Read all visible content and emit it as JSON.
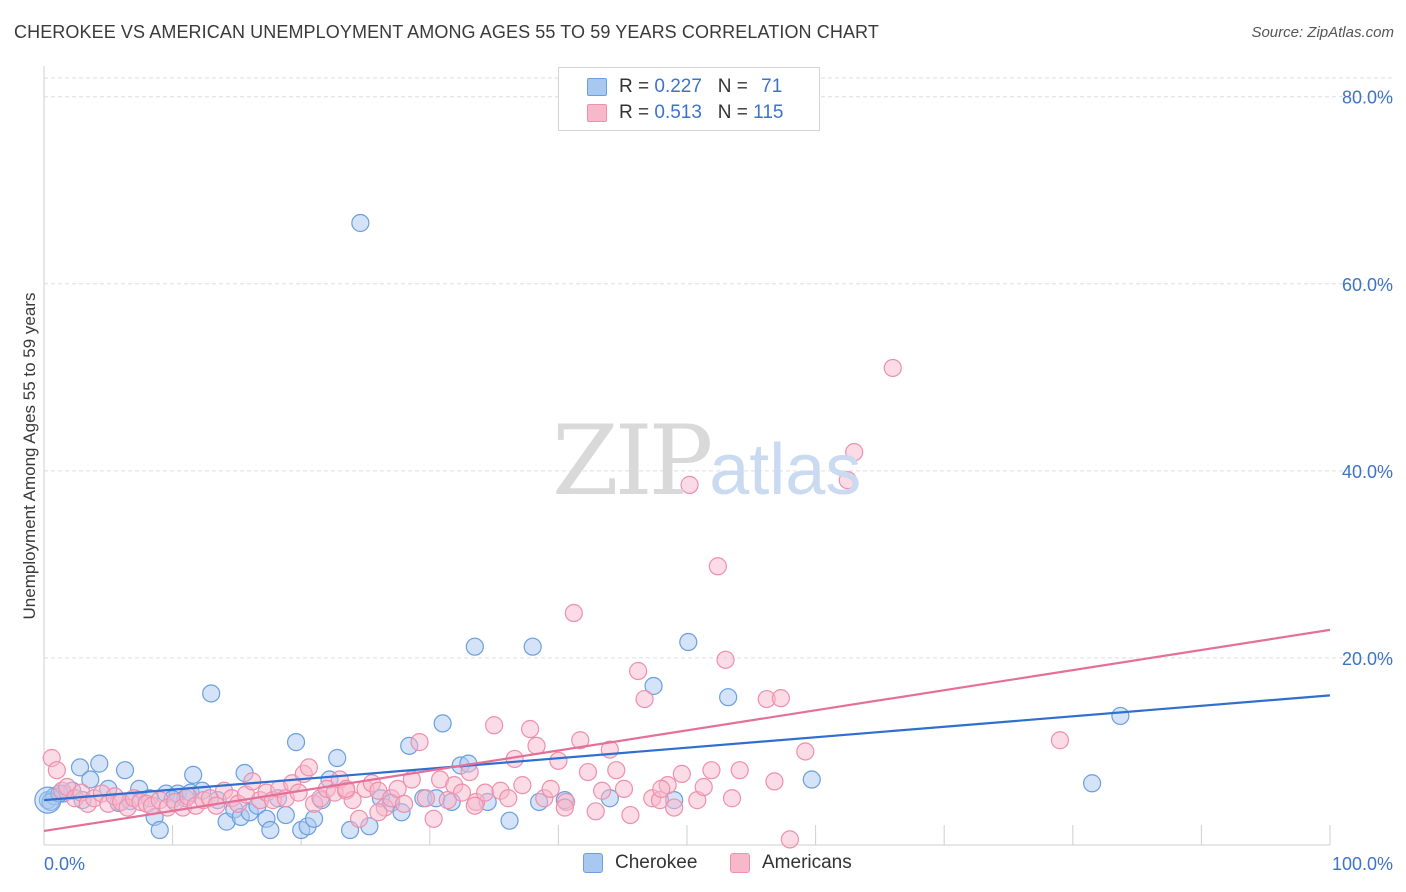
{
  "title": "CHEROKEE VS AMERICAN UNEMPLOYMENT AMONG AGES 55 TO 59 YEARS CORRELATION CHART",
  "source": "Source: ZipAtlas.com",
  "watermark": {
    "zip": "ZIP",
    "atlas": "atlas"
  },
  "legend": {
    "rows": [
      {
        "r_label": "R =",
        "r_value": "0.227",
        "n_label": "N =",
        "n_value": "71",
        "color": "#a9c8f0"
      },
      {
        "r_label": "R =",
        "r_value": "0.513",
        "n_label": "N =",
        "n_value": "115",
        "color": "#f7b8cb"
      }
    ]
  },
  "chart_data": {
    "type": "scatter",
    "title": "CHEROKEE VS AMERICAN UNEMPLOYMENT AMONG AGES 55 TO 59 YEARS CORRELATION CHART",
    "xlabel": "",
    "ylabel": "Unemployment Among Ages 55 to 59 years",
    "xlim": [
      0,
      100
    ],
    "ylim": [
      0,
      82
    ],
    "x_tick_labels": [
      "0.0%",
      "100.0%"
    ],
    "y_ticks": [
      20,
      40,
      60,
      80
    ],
    "y_tick_labels": [
      "20.0%",
      "40.0%",
      "60.0%",
      "80.0%"
    ],
    "grid": true,
    "legend_position": "top-center",
    "series": [
      {
        "name": "Cherokee",
        "color": "#6a9fe0",
        "fill": "#a9c8f0",
        "line_color": "#2f6fcf",
        "trend": {
          "x": [
            0,
            100
          ],
          "y": [
            4.8,
            16.0
          ]
        },
        "points": [
          [
            0.3,
            4.8
          ],
          [
            0.8,
            5.2
          ],
          [
            1.5,
            5.5
          ],
          [
            2.2,
            5.8
          ],
          [
            2.8,
            8.3
          ],
          [
            3.6,
            7.0
          ],
          [
            4.3,
            8.7
          ],
          [
            5.0,
            6.0
          ],
          [
            5.8,
            4.5
          ],
          [
            6.3,
            8.0
          ],
          [
            7.4,
            6.0
          ],
          [
            8.2,
            5.0
          ],
          [
            8.6,
            3.0
          ],
          [
            9.0,
            1.6
          ],
          [
            9.5,
            5.5
          ],
          [
            10.4,
            5.5
          ],
          [
            11.0,
            5.0
          ],
          [
            11.4,
            5.6
          ],
          [
            11.6,
            7.5
          ],
          [
            12.3,
            5.8
          ],
          [
            13.0,
            16.2
          ],
          [
            13.5,
            4.8
          ],
          [
            14.2,
            2.5
          ],
          [
            14.8,
            3.8
          ],
          [
            15.3,
            3.0
          ],
          [
            15.6,
            7.7
          ],
          [
            16.0,
            3.5
          ],
          [
            16.6,
            4.2
          ],
          [
            17.3,
            2.8
          ],
          [
            17.6,
            1.6
          ],
          [
            18.2,
            5.0
          ],
          [
            18.8,
            3.2
          ],
          [
            19.6,
            11.0
          ],
          [
            20.0,
            1.6
          ],
          [
            20.5,
            2.0
          ],
          [
            21.0,
            2.8
          ],
          [
            21.6,
            4.8
          ],
          [
            22.2,
            7.0
          ],
          [
            22.8,
            9.3
          ],
          [
            23.8,
            1.6
          ],
          [
            24.6,
            66.5
          ],
          [
            25.3,
            2.0
          ],
          [
            26.2,
            5.0
          ],
          [
            27.0,
            4.5
          ],
          [
            27.8,
            3.5
          ],
          [
            28.4,
            10.6
          ],
          [
            29.5,
            5.0
          ],
          [
            30.5,
            5.0
          ],
          [
            31.0,
            13.0
          ],
          [
            31.7,
            4.6
          ],
          [
            32.4,
            8.5
          ],
          [
            33.0,
            8.7
          ],
          [
            33.5,
            21.2
          ],
          [
            34.5,
            4.6
          ],
          [
            36.2,
            2.6
          ],
          [
            38.0,
            21.2
          ],
          [
            38.5,
            4.6
          ],
          [
            40.5,
            4.8
          ],
          [
            44.0,
            5.0
          ],
          [
            47.4,
            17.0
          ],
          [
            49.0,
            4.8
          ],
          [
            50.1,
            21.7
          ],
          [
            53.2,
            15.8
          ],
          [
            59.7,
            7.0
          ],
          [
            81.5,
            6.6
          ],
          [
            83.7,
            13.8
          ],
          [
            0.5,
            4.6
          ],
          [
            1.2,
            5.5
          ],
          [
            3.0,
            4.8
          ],
          [
            6.7,
            4.7
          ],
          [
            10.0,
            4.9
          ]
        ]
      },
      {
        "name": "Americans",
        "color": "#ef8fab",
        "fill": "#f7b8cb",
        "line_color": "#e4709a",
        "trend": {
          "x": [
            0,
            100
          ],
          "y": [
            1.5,
            23.0
          ]
        },
        "points": [
          [
            0.6,
            9.3
          ],
          [
            1.0,
            8.0
          ],
          [
            1.4,
            5.8
          ],
          [
            1.8,
            6.2
          ],
          [
            2.4,
            5.0
          ],
          [
            2.9,
            5.6
          ],
          [
            3.4,
            4.4
          ],
          [
            3.9,
            5.0
          ],
          [
            4.5,
            5.5
          ],
          [
            5.0,
            4.4
          ],
          [
            5.5,
            5.2
          ],
          [
            6.0,
            4.6
          ],
          [
            6.5,
            4.0
          ],
          [
            7.0,
            5.0
          ],
          [
            7.5,
            4.6
          ],
          [
            8.0,
            4.4
          ],
          [
            8.4,
            4.2
          ],
          [
            9.0,
            4.8
          ],
          [
            9.6,
            4.0
          ],
          [
            10.2,
            4.6
          ],
          [
            10.8,
            4.0
          ],
          [
            11.2,
            5.2
          ],
          [
            11.8,
            4.2
          ],
          [
            12.4,
            4.8
          ],
          [
            12.9,
            5.0
          ],
          [
            13.4,
            4.2
          ],
          [
            14.0,
            5.8
          ],
          [
            14.6,
            5.0
          ],
          [
            15.1,
            4.4
          ],
          [
            15.7,
            5.4
          ],
          [
            16.2,
            6.8
          ],
          [
            16.8,
            4.8
          ],
          [
            17.3,
            5.6
          ],
          [
            17.8,
            4.8
          ],
          [
            18.3,
            6.0
          ],
          [
            18.8,
            5.0
          ],
          [
            19.3,
            6.6
          ],
          [
            19.8,
            5.6
          ],
          [
            20.2,
            7.6
          ],
          [
            20.6,
            8.3
          ],
          [
            21.0,
            4.4
          ],
          [
            21.5,
            5.0
          ],
          [
            22.0,
            6.0
          ],
          [
            22.6,
            5.6
          ],
          [
            23.0,
            7.0
          ],
          [
            23.5,
            5.8
          ],
          [
            24.0,
            4.8
          ],
          [
            24.5,
            2.8
          ],
          [
            25.0,
            6.0
          ],
          [
            25.5,
            6.6
          ],
          [
            26.0,
            5.8
          ],
          [
            26.5,
            4.0
          ],
          [
            27.0,
            5.0
          ],
          [
            27.5,
            6.0
          ],
          [
            28.0,
            4.4
          ],
          [
            28.6,
            7.0
          ],
          [
            29.2,
            11.0
          ],
          [
            29.7,
            5.0
          ],
          [
            30.3,
            2.8
          ],
          [
            30.8,
            7.0
          ],
          [
            31.4,
            4.8
          ],
          [
            31.9,
            6.4
          ],
          [
            32.5,
            5.6
          ],
          [
            33.1,
            7.8
          ],
          [
            33.6,
            4.6
          ],
          [
            34.3,
            5.6
          ],
          [
            35.0,
            12.8
          ],
          [
            35.5,
            5.8
          ],
          [
            36.1,
            5.0
          ],
          [
            36.6,
            9.2
          ],
          [
            37.2,
            6.4
          ],
          [
            37.8,
            12.4
          ],
          [
            38.3,
            10.6
          ],
          [
            38.9,
            5.0
          ],
          [
            39.4,
            6.0
          ],
          [
            40.0,
            9.0
          ],
          [
            40.6,
            4.6
          ],
          [
            41.2,
            24.8
          ],
          [
            41.7,
            11.2
          ],
          [
            42.3,
            7.8
          ],
          [
            42.9,
            3.6
          ],
          [
            43.4,
            5.8
          ],
          [
            44.0,
            10.2
          ],
          [
            44.5,
            8.0
          ],
          [
            45.1,
            6.0
          ],
          [
            45.6,
            3.2
          ],
          [
            46.2,
            18.6
          ],
          [
            46.7,
            15.6
          ],
          [
            47.3,
            5.0
          ],
          [
            47.9,
            4.8
          ],
          [
            48.5,
            6.4
          ],
          [
            49.0,
            4.0
          ],
          [
            49.6,
            7.6
          ],
          [
            50.2,
            38.5
          ],
          [
            50.8,
            4.8
          ],
          [
            51.3,
            6.2
          ],
          [
            51.9,
            8.0
          ],
          [
            52.4,
            29.8
          ],
          [
            53.0,
            19.8
          ],
          [
            53.5,
            5.0
          ],
          [
            54.1,
            8.0
          ],
          [
            56.2,
            15.6
          ],
          [
            56.8,
            6.8
          ],
          [
            57.3,
            15.7
          ],
          [
            58.0,
            0.6
          ],
          [
            59.2,
            10.0
          ],
          [
            62.5,
            39.0
          ],
          [
            63.0,
            42.0
          ],
          [
            66.0,
            51.0
          ],
          [
            79.0,
            11.2
          ],
          [
            23.5,
            6.0
          ],
          [
            26.0,
            3.5
          ],
          [
            40.5,
            4.0
          ],
          [
            33.5,
            4.2
          ],
          [
            48.0,
            6.0
          ]
        ]
      }
    ]
  }
}
